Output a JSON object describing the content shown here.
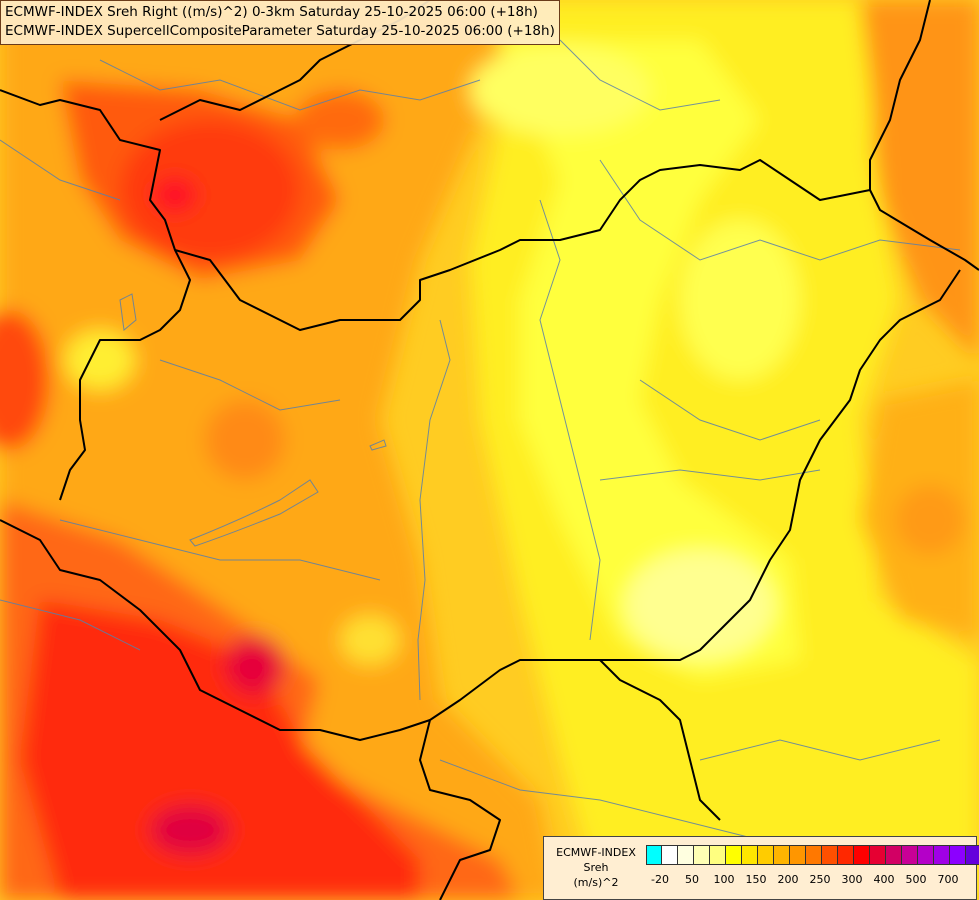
{
  "title_lines": [
    "ECMWF-INDEX Sreh Right ((m/s)^2) 0-3km Saturday 25-10-2025 06:00 (+18h)",
    "ECMWF-INDEX SupercellCompositeParameter Saturday 25-10-2025 06:00 (+18h)"
  ],
  "legend": {
    "name_lines": [
      "ECMWF-INDEX",
      "Sreh",
      "(m/s)^2"
    ],
    "colors": [
      "#00ffff",
      "#ffffff",
      "#ffffe0",
      "#ffffb4",
      "#ffff80",
      "#ffff00",
      "#ffe600",
      "#ffcc00",
      "#ffb400",
      "#ff9600",
      "#ff7800",
      "#ff5000",
      "#ff2800",
      "#ff0000",
      "#e60032",
      "#d20064",
      "#c80096",
      "#b400c8",
      "#a000e6",
      "#8c00ff",
      "#6400dc",
      "#3c00b4",
      "#1e0096"
    ],
    "tick_labels": [
      "-20",
      "50",
      "100",
      "150",
      "200",
      "250",
      "300",
      "400",
      "500",
      "700"
    ]
  },
  "colors": {
    "background_field": "#ffd84a",
    "country_border": "#000000",
    "river_lines": "#5a7fa8"
  }
}
